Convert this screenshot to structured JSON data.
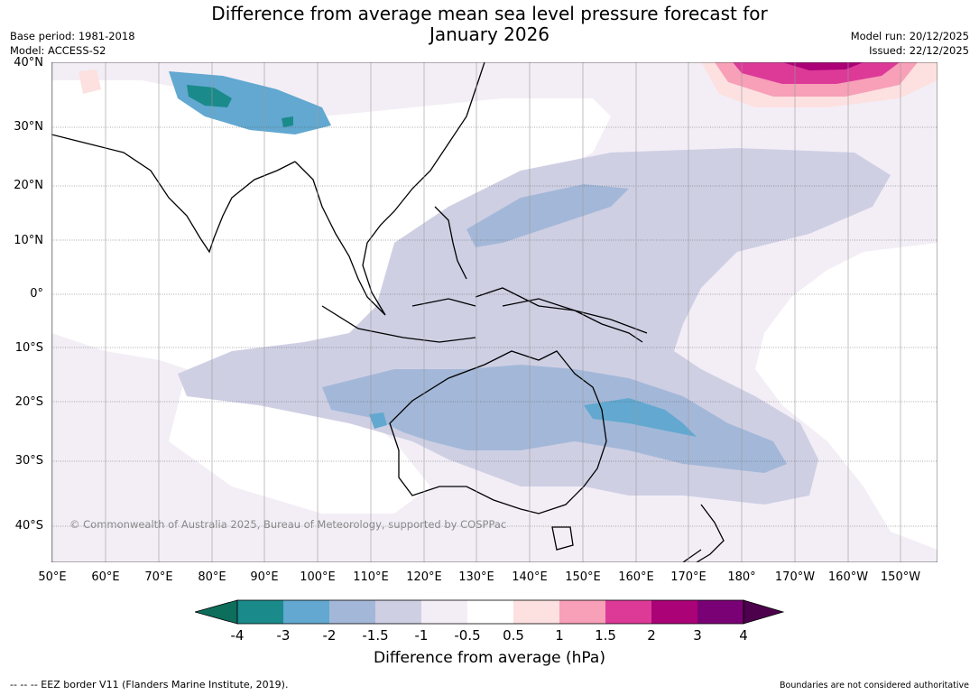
{
  "title": "Difference from average mean sea level pressure forecast for\nJanuary 2026",
  "meta_left": {
    "base_period": "Base period: 1981-2018",
    "model": "Model: ACCESS-S2"
  },
  "meta_right": {
    "model_run": "Model run: 20/12/2025",
    "issued": "Issued: 22/12/2025"
  },
  "latitude_labels": [
    "40°N",
    "30°N",
    "20°N",
    "10°N",
    "0°",
    "10°S",
    "20°S",
    "30°S",
    "40°S"
  ],
  "longitude_labels": [
    "50°E",
    "60°E",
    "70°E",
    "80°E",
    "90°E",
    "100°E",
    "110°E",
    "120°E",
    "130°E",
    "140°E",
    "150°E",
    "160°E",
    "170°E",
    "180°",
    "170°W",
    "160°W",
    "150°W"
  ],
  "copyright": "© Commonwealth of Australia 2025, Bureau of Meteorology, supported by COSPPac",
  "colorbar": {
    "ticks": [
      "-4",
      "-3",
      "-2",
      "-1.5",
      "-1",
      "-0.5",
      "0.5",
      "1",
      "1.5",
      "2",
      "3",
      "4"
    ],
    "colors": [
      "#1a8a8a",
      "#62a8d0",
      "#a3b8d8",
      "#cfcfe4",
      "#f3eef6",
      "#ffffff",
      "#fde0e0",
      "#f7a0b8",
      "#dd3a98",
      "#ab0277",
      "#7a0076"
    ],
    "under_color": "#0e6e5c",
    "over_color": "#4d004b",
    "label": "Difference from average (hPa)"
  },
  "legend_eez": "--  --  -- EEZ border V11 (Flanders Marine Institute, 2019).",
  "boundaries_note": "Boundaries are not considered authoritative"
}
